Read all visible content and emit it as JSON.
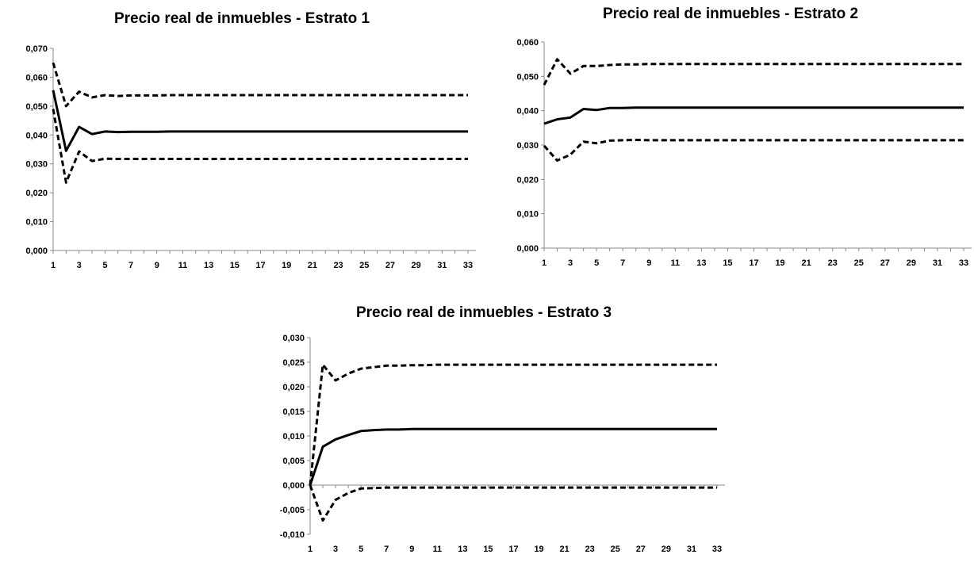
{
  "chart_data": [
    {
      "type": "line",
      "title": "Precio real de inmuebles - Estrato 1",
      "xlabel": "",
      "ylabel": "",
      "x_tick_labels": [
        "1",
        "3",
        "5",
        "7",
        "9",
        "11",
        "13",
        "15",
        "17",
        "19",
        "21",
        "23",
        "25",
        "27",
        "29",
        "31",
        "33"
      ],
      "y_tick_labels": [
        "0,000",
        "0,010",
        "0,020",
        "0,030",
        "0,040",
        "0,050",
        "0,060",
        "0,070"
      ],
      "ylim": [
        0,
        0.07
      ],
      "xlim": [
        1,
        33
      ],
      "grid": false,
      "legend": "none",
      "series": [
        {
          "style": "solid",
          "color": "#000000",
          "x": [
            1,
            2,
            3,
            4,
            5,
            6,
            7,
            8,
            9,
            10,
            11,
            12,
            13,
            14,
            15,
            16,
            17,
            18,
            19,
            20,
            21,
            22,
            23,
            24,
            25,
            26,
            27,
            28,
            29,
            30,
            31,
            32,
            33
          ],
          "values": [
            0.0555,
            0.0345,
            0.0428,
            0.0403,
            0.0412,
            0.041,
            0.0411,
            0.0411,
            0.0411,
            0.0412,
            0.0412,
            0.0412,
            0.0412,
            0.0412,
            0.0412,
            0.0412,
            0.0412,
            0.0412,
            0.0412,
            0.0412,
            0.0412,
            0.0412,
            0.0412,
            0.0412,
            0.0412,
            0.0412,
            0.0412,
            0.0412,
            0.0412,
            0.0412,
            0.0412,
            0.0412,
            0.0412
          ]
        },
        {
          "style": "dashed",
          "color": "#000000",
          "x": [
            1,
            2,
            3,
            4,
            5,
            6,
            7,
            8,
            9,
            10,
            11,
            12,
            13,
            14,
            15,
            16,
            17,
            18,
            19,
            20,
            21,
            22,
            23,
            24,
            25,
            26,
            27,
            28,
            29,
            30,
            31,
            32,
            33
          ],
          "values": [
            0.065,
            0.05,
            0.055,
            0.053,
            0.0538,
            0.0535,
            0.0537,
            0.0537,
            0.0537,
            0.0538,
            0.0538,
            0.0538,
            0.0538,
            0.0538,
            0.0538,
            0.0538,
            0.0538,
            0.0538,
            0.0538,
            0.0538,
            0.0538,
            0.0538,
            0.0538,
            0.0538,
            0.0538,
            0.0538,
            0.0538,
            0.0538,
            0.0538,
            0.0538,
            0.0538,
            0.0538,
            0.0538
          ]
        },
        {
          "style": "dashed",
          "color": "#000000",
          "x": [
            1,
            2,
            3,
            4,
            5,
            6,
            7,
            8,
            9,
            10,
            11,
            12,
            13,
            14,
            15,
            16,
            17,
            18,
            19,
            20,
            21,
            22,
            23,
            24,
            25,
            26,
            27,
            28,
            29,
            30,
            31,
            32,
            33
          ],
          "values": [
            0.049,
            0.0235,
            0.0343,
            0.031,
            0.0318,
            0.0317,
            0.0317,
            0.0317,
            0.0317,
            0.0317,
            0.0317,
            0.0317,
            0.0317,
            0.0317,
            0.0317,
            0.0317,
            0.0317,
            0.0317,
            0.0317,
            0.0317,
            0.0317,
            0.0317,
            0.0317,
            0.0317,
            0.0317,
            0.0317,
            0.0317,
            0.0317,
            0.0317,
            0.0317,
            0.0317,
            0.0317,
            0.0317
          ]
        }
      ]
    },
    {
      "type": "line",
      "title": "Precio real de inmuebles - Estrato 2",
      "xlabel": "",
      "ylabel": "",
      "x_tick_labels": [
        "1",
        "3",
        "5",
        "7",
        "9",
        "11",
        "13",
        "15",
        "17",
        "19",
        "21",
        "23",
        "25",
        "27",
        "29",
        "31",
        "33"
      ],
      "y_tick_labels": [
        "0,000",
        "0,010",
        "0,020",
        "0,030",
        "0,040",
        "0,050",
        "0,060"
      ],
      "ylim": [
        0,
        0.06
      ],
      "xlim": [
        1,
        33
      ],
      "grid": false,
      "legend": "none",
      "series": [
        {
          "style": "solid",
          "color": "#000000",
          "x": [
            1,
            2,
            3,
            4,
            5,
            6,
            7,
            8,
            9,
            10,
            11,
            12,
            13,
            14,
            15,
            16,
            17,
            18,
            19,
            20,
            21,
            22,
            23,
            24,
            25,
            26,
            27,
            28,
            29,
            30,
            31,
            32,
            33
          ],
          "values": [
            0.0362,
            0.0375,
            0.038,
            0.0405,
            0.0402,
            0.0408,
            0.0408,
            0.0409,
            0.0409,
            0.0409,
            0.0409,
            0.0409,
            0.0409,
            0.0409,
            0.0409,
            0.0409,
            0.0409,
            0.0409,
            0.0409,
            0.0409,
            0.0409,
            0.0409,
            0.0409,
            0.0409,
            0.0409,
            0.0409,
            0.0409,
            0.0409,
            0.0409,
            0.0409,
            0.0409,
            0.0409,
            0.0409
          ]
        },
        {
          "style": "dashed",
          "color": "#000000",
          "x": [
            1,
            2,
            3,
            4,
            5,
            6,
            7,
            8,
            9,
            10,
            11,
            12,
            13,
            14,
            15,
            16,
            17,
            18,
            19,
            20,
            21,
            22,
            23,
            24,
            25,
            26,
            27,
            28,
            29,
            30,
            31,
            32,
            33
          ],
          "values": [
            0.0475,
            0.055,
            0.0508,
            0.053,
            0.053,
            0.0533,
            0.0535,
            0.0535,
            0.0536,
            0.0536,
            0.0536,
            0.0536,
            0.0536,
            0.0536,
            0.0536,
            0.0536,
            0.0536,
            0.0536,
            0.0536,
            0.0536,
            0.0536,
            0.0536,
            0.0536,
            0.0536,
            0.0536,
            0.0536,
            0.0536,
            0.0536,
            0.0536,
            0.0536,
            0.0536,
            0.0536,
            0.0536
          ]
        },
        {
          "style": "dashed",
          "color": "#000000",
          "x": [
            1,
            2,
            3,
            4,
            5,
            6,
            7,
            8,
            9,
            10,
            11,
            12,
            13,
            14,
            15,
            16,
            17,
            18,
            19,
            20,
            21,
            22,
            23,
            24,
            25,
            26,
            27,
            28,
            29,
            30,
            31,
            32,
            33
          ],
          "values": [
            0.0298,
            0.0255,
            0.0272,
            0.031,
            0.0305,
            0.0313,
            0.0314,
            0.0315,
            0.0314,
            0.0314,
            0.0314,
            0.0314,
            0.0314,
            0.0314,
            0.0314,
            0.0314,
            0.0314,
            0.0314,
            0.0314,
            0.0314,
            0.0314,
            0.0314,
            0.0314,
            0.0314,
            0.0314,
            0.0314,
            0.0314,
            0.0314,
            0.0314,
            0.0314,
            0.0314,
            0.0314,
            0.0314
          ]
        }
      ]
    },
    {
      "type": "line",
      "title": "Precio real de inmuebles - Estrato 3",
      "xlabel": "",
      "ylabel": "",
      "x_tick_labels": [
        "1",
        "3",
        "5",
        "7",
        "9",
        "11",
        "13",
        "15",
        "17",
        "19",
        "21",
        "23",
        "25",
        "27",
        "29",
        "31",
        "33"
      ],
      "y_tick_labels": [
        "-0,010",
        "-0,005",
        "0,000",
        "0,005",
        "0,010",
        "0,015",
        "0,020",
        "0,025",
        "0,030"
      ],
      "ylim": [
        -0.01,
        0.03
      ],
      "xlim": [
        1,
        33
      ],
      "grid": false,
      "legend": "none",
      "series": [
        {
          "style": "solid",
          "color": "#000000",
          "x": [
            1,
            2,
            3,
            4,
            5,
            6,
            7,
            8,
            9,
            10,
            11,
            12,
            13,
            14,
            15,
            16,
            17,
            18,
            19,
            20,
            21,
            22,
            23,
            24,
            25,
            26,
            27,
            28,
            29,
            30,
            31,
            32,
            33
          ],
          "values": [
            0.0,
            0.0078,
            0.0093,
            0.0102,
            0.011,
            0.0112,
            0.0113,
            0.0113,
            0.0114,
            0.0114,
            0.0114,
            0.0114,
            0.0114,
            0.0114,
            0.0114,
            0.0114,
            0.0114,
            0.0114,
            0.0114,
            0.0114,
            0.0114,
            0.0114,
            0.0114,
            0.0114,
            0.0114,
            0.0114,
            0.0114,
            0.0114,
            0.0114,
            0.0114,
            0.0114,
            0.0114,
            0.0114
          ]
        },
        {
          "style": "dashed",
          "color": "#000000",
          "x": [
            1,
            2,
            3,
            4,
            5,
            6,
            7,
            8,
            9,
            10,
            11,
            12,
            13,
            14,
            15,
            16,
            17,
            18,
            19,
            20,
            21,
            22,
            23,
            24,
            25,
            26,
            27,
            28,
            29,
            30,
            31,
            32,
            33
          ],
          "values": [
            0.0,
            0.0245,
            0.0213,
            0.0227,
            0.0237,
            0.024,
            0.0243,
            0.0243,
            0.0244,
            0.0244,
            0.0245,
            0.0245,
            0.0245,
            0.0245,
            0.0245,
            0.0245,
            0.0245,
            0.0245,
            0.0245,
            0.0245,
            0.0245,
            0.0245,
            0.0245,
            0.0245,
            0.0245,
            0.0245,
            0.0245,
            0.0245,
            0.0245,
            0.0245,
            0.0245,
            0.0245,
            0.0245
          ]
        },
        {
          "style": "dashed",
          "color": "#000000",
          "x": [
            1,
            2,
            3,
            4,
            5,
            6,
            7,
            8,
            9,
            10,
            11,
            12,
            13,
            14,
            15,
            16,
            17,
            18,
            19,
            20,
            21,
            22,
            23,
            24,
            25,
            26,
            27,
            28,
            29,
            30,
            31,
            32,
            33
          ],
          "values": [
            0.0,
            -0.0072,
            -0.003,
            -0.0016,
            -0.0007,
            -0.0006,
            -0.0005,
            -0.0005,
            -0.0005,
            -0.0005,
            -0.0005,
            -0.0005,
            -0.0005,
            -0.0005,
            -0.0005,
            -0.0005,
            -0.0005,
            -0.0005,
            -0.0005,
            -0.0005,
            -0.0005,
            -0.0005,
            -0.0005,
            -0.0005,
            -0.0005,
            -0.0005,
            -0.0005,
            -0.0005,
            -0.0005,
            -0.0005,
            -0.0005,
            -0.0005,
            -0.0005
          ]
        }
      ]
    }
  ]
}
